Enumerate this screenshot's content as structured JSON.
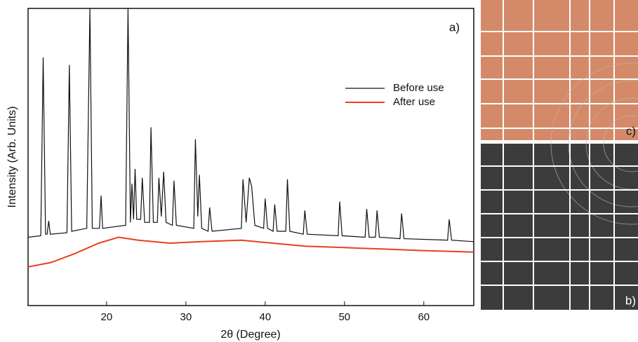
{
  "chart_data": {
    "type": "line",
    "x_label": "2θ (Degree)",
    "y_label": "Intensity (Arb. Units)",
    "annotations": [
      "a)",
      "b)",
      "c)"
    ],
    "xlim": [
      10.1,
      66.3
    ],
    "ylim": [
      0,
      100
    ],
    "xticks": [
      20,
      30,
      40,
      50,
      60
    ],
    "series": [
      {
        "name": "Before use",
        "color": "#111111",
        "x": [
          10.1,
          11.7,
          12.0,
          12.3,
          12.5,
          12.7,
          12.9,
          15.0,
          15.3,
          15.6,
          17.5,
          17.9,
          18.2,
          19.1,
          19.3,
          19.5,
          22.4,
          22.7,
          23.0,
          23.2,
          23.4,
          23.6,
          23.8,
          24.3,
          24.5,
          24.8,
          25.4,
          25.6,
          25.9,
          26.4,
          26.6,
          26.9,
          27.2,
          27.5,
          28.3,
          28.5,
          28.8,
          31.0,
          31.2,
          31.5,
          31.7,
          32.0,
          32.8,
          33.0,
          33.3,
          37.0,
          37.2,
          37.6,
          38.0,
          38.3,
          38.7,
          39.8,
          40.0,
          40.3,
          41.0,
          41.2,
          41.5,
          42.6,
          42.8,
          43.1,
          44.8,
          45.0,
          45.3,
          49.2,
          49.4,
          49.7,
          52.6,
          52.8,
          53.1,
          53.9,
          54.1,
          54.4,
          57.0,
          57.2,
          57.5,
          63.0,
          63.2,
          63.5,
          66.3
        ],
        "values": [
          23,
          23.5,
          83.5,
          24,
          24,
          28.5,
          24,
          24.5,
          81,
          25,
          26,
          100,
          26,
          26,
          37,
          26,
          27,
          100,
          28,
          41,
          29,
          46,
          29,
          29,
          43,
          28,
          28,
          60,
          28,
          28,
          43,
          30,
          45,
          28,
          27,
          42,
          27,
          26,
          56,
          30,
          44,
          26,
          25,
          33,
          25,
          26,
          42.5,
          28,
          43,
          40,
          27,
          26,
          36,
          26,
          25,
          34,
          25,
          25,
          42.5,
          25,
          24,
          32,
          24,
          23.5,
          35,
          23.5,
          23,
          32.5,
          23,
          23,
          32,
          23,
          22.5,
          31,
          22.5,
          22,
          29,
          22,
          21.5
        ]
      },
      {
        "name": "After use",
        "color": "#e8401c",
        "x": [
          10.1,
          13,
          16,
          19,
          21.5,
          24,
          28,
          32,
          37,
          41,
          45,
          50,
          55,
          60,
          66.3
        ],
        "values": [
          13,
          14.5,
          17.5,
          21,
          23,
          22,
          21,
          21.5,
          22,
          21,
          20,
          19.5,
          19,
          18.5,
          18
        ]
      }
    ]
  }
}
